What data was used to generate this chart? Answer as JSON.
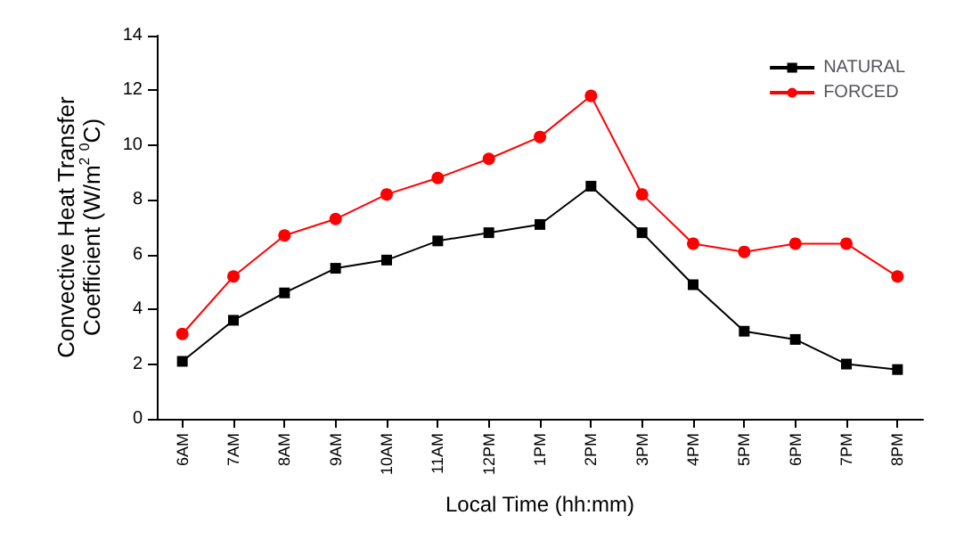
{
  "chart_data": {
    "type": "line",
    "xlabel": "Local Time (hh:mm)",
    "ylabel": "Convective Heat Transfer\nCoefficient (W/m$^{2}$ $^{0}$C)",
    "categories": [
      "6AM",
      "7AM",
      "8AM",
      "9AM",
      "10AM",
      "11AM",
      "12PM",
      "1PM",
      "2PM",
      "3PM",
      "4PM",
      "5PM",
      "6PM",
      "7PM",
      "8PM"
    ],
    "series": [
      {
        "name": "NATURAL",
        "color": "#000000",
        "marker": "square",
        "values": [
          2.1,
          3.6,
          4.6,
          5.5,
          5.8,
          6.5,
          6.8,
          7.1,
          8.5,
          6.8,
          4.9,
          3.2,
          2.9,
          2.0,
          1.8
        ]
      },
      {
        "name": "FORCED",
        "color": "#ff0000",
        "marker": "circle",
        "values": [
          3.1,
          5.2,
          6.7,
          7.3,
          8.2,
          8.8,
          9.5,
          10.3,
          11.8,
          8.2,
          6.4,
          6.1,
          6.4,
          6.4,
          5.2
        ]
      }
    ],
    "ylim": [
      0,
      14
    ],
    "yticks": [
      0,
      2,
      4,
      6,
      8,
      10,
      12,
      14
    ],
    "grid": false,
    "legend": "top right",
    "line_style": "solid"
  }
}
